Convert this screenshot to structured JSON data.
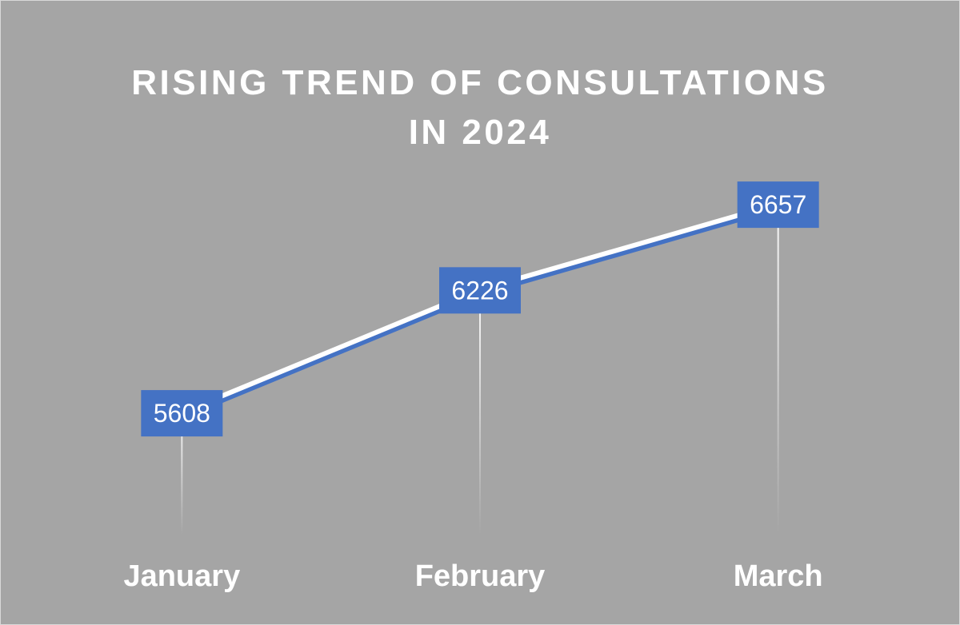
{
  "chart_data": {
    "type": "line",
    "title": "RISING TREND OF CONSULTATIONS\nIN 2024",
    "categories": [
      "January",
      "February",
      "March"
    ],
    "series": [
      {
        "name": "Consultations",
        "values": [
          5608,
          6226,
          6657
        ]
      }
    ],
    "xlabel": "",
    "ylabel": "",
    "ylim": [
      4700,
      7200
    ],
    "grid": false,
    "legend": "none",
    "drop_lines": true,
    "data_labels": true
  },
  "colors": {
    "background": "#a5a5a5",
    "line_main": "#4472c4",
    "line_highlight": "#ffffff",
    "label_fill": "#4472c4",
    "text": "#ffffff",
    "drop_line": "#ffffff"
  }
}
